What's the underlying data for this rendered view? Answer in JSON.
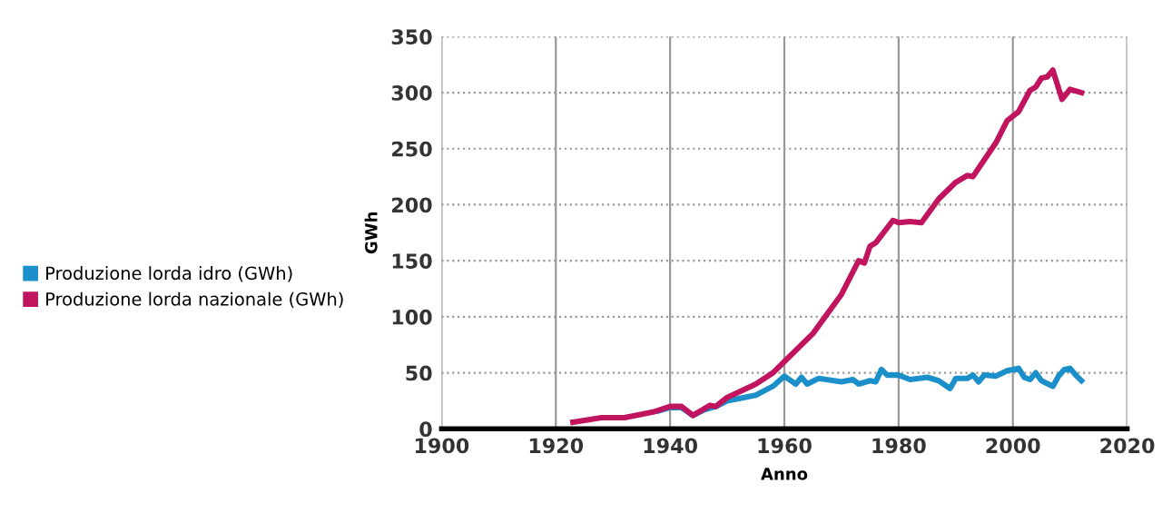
{
  "chart_data": {
    "type": "line",
    "xlabel": "Anno",
    "ylabel": "GWh",
    "xlim": [
      1900,
      2020
    ],
    "xticks": [
      1900,
      1920,
      1940,
      1960,
      1980,
      2000,
      2020
    ],
    "ylim": [
      0,
      350
    ],
    "yticks": [
      0,
      50,
      100,
      150,
      200,
      250,
      300,
      350
    ],
    "grid": true,
    "legend": "left",
    "marker": "none",
    "line_style": "solid",
    "series": [
      {
        "name": "Produzione lorda idro (GWh)",
        "color": "#1a8fc9",
        "x": [
          1938,
          1940,
          1942,
          1944,
          1946,
          1948,
          1950,
          1953,
          1955,
          1958,
          1960,
          1962,
          1963,
          1964,
          1966,
          1970,
          1972,
          1973,
          1975,
          1976,
          1977,
          1978,
          1980,
          1982,
          1985,
          1987,
          1989,
          1990,
          1992,
          1993,
          1994,
          1995,
          1997,
          1999,
          2001,
          2002,
          2003,
          2004,
          2005,
          2007,
          2008,
          2009,
          2010,
          2011,
          2012
        ],
        "values": [
          16,
          19,
          19,
          12,
          17,
          20,
          25,
          28,
          30,
          38,
          47,
          40,
          46,
          40,
          45,
          42,
          44,
          40,
          43,
          42,
          53,
          48,
          48,
          44,
          46,
          43,
          36,
          45,
          45,
          48,
          42,
          48,
          47,
          52,
          54,
          46,
          44,
          50,
          43,
          38,
          47,
          53,
          54,
          48,
          43
        ]
      },
      {
        "name": "Produzione lorda nazionale (GWh)",
        "color": "#c0145e",
        "x": [
          1923,
          1928,
          1932,
          1937,
          1940,
          1942,
          1944,
          1947,
          1948,
          1950,
          1955,
          1958,
          1960,
          1965,
          1970,
          1973,
          1974,
          1975,
          1976,
          1979,
          1980,
          1982,
          1984,
          1987,
          1990,
          1992,
          1993,
          1995,
          1997,
          1999,
          2001,
          2003,
          2004,
          2005,
          2006,
          2007,
          2008.6,
          2010,
          2012
        ],
        "values": [
          6,
          10,
          10,
          15,
          20,
          20,
          12,
          21,
          20,
          28,
          40,
          50,
          60,
          85,
          120,
          150,
          148,
          163,
          166,
          186,
          184,
          185,
          184,
          205,
          220,
          226,
          225,
          240,
          255,
          275,
          283,
          302,
          305,
          313,
          314,
          320,
          294,
          303,
          300
        ]
      }
    ]
  }
}
